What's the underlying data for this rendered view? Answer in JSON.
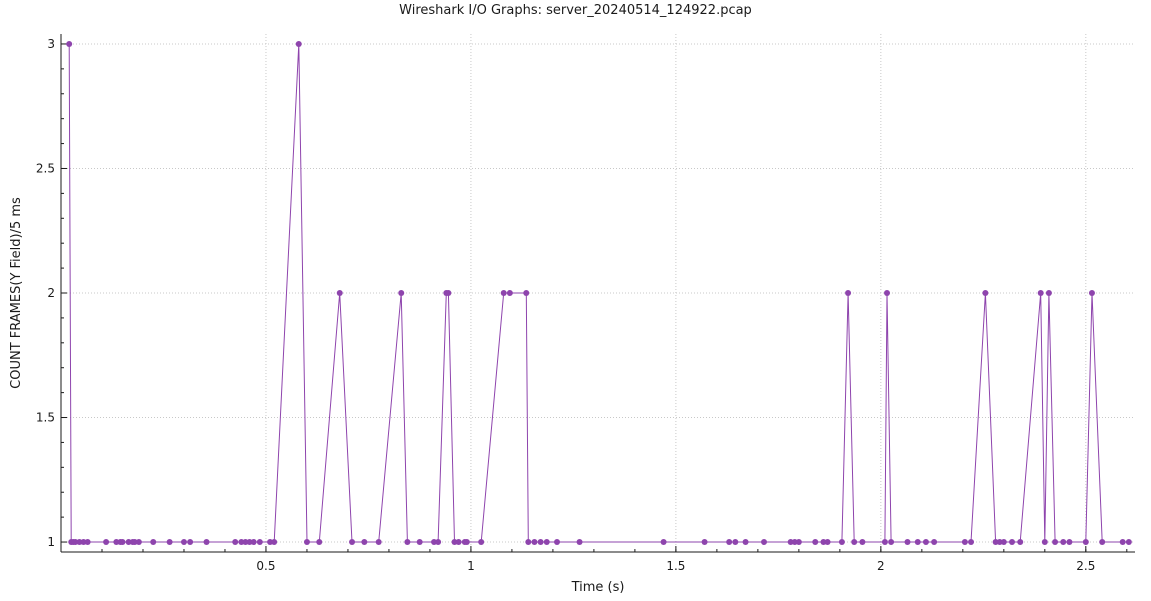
{
  "chart_data": {
    "type": "line",
    "title": "Wireshark I/O Graphs: server_20240514_124922.pcap",
    "xlabel": "Time (s)",
    "ylabel": "COUNT FRAMES(Y Field)/5 ms",
    "xlim": [
      0.0,
      2.62
    ],
    "ylim": [
      0.96,
      3.04
    ],
    "x_ticks": [
      0.5,
      1,
      1.5,
      2,
      2.5
    ],
    "x_tick_labels": [
      "0.5",
      "1",
      "1.5",
      "2",
      "2.5"
    ],
    "y_ticks": [
      1,
      1.5,
      2,
      2.5,
      3
    ],
    "y_tick_labels": [
      "1",
      "1.5",
      "2",
      "2.5",
      "3"
    ],
    "grid": true,
    "series": [
      {
        "color": "#8e44ad",
        "x": [
          0.02,
          0.025,
          0.03,
          0.035,
          0.045,
          0.055,
          0.065,
          0.11,
          0.135,
          0.145,
          0.15,
          0.165,
          0.175,
          0.18,
          0.19,
          0.225,
          0.265,
          0.3,
          0.315,
          0.355,
          0.425,
          0.44,
          0.45,
          0.46,
          0.47,
          0.485,
          0.51,
          0.52,
          0.58,
          0.6,
          0.63,
          0.68,
          0.71,
          0.74,
          0.775,
          0.83,
          0.845,
          0.875,
          0.91,
          0.92,
          0.94,
          0.945,
          0.96,
          0.97,
          0.985,
          0.99,
          1.025,
          1.08,
          1.095,
          1.135,
          1.14,
          1.155,
          1.17,
          1.185,
          1.21,
          1.265,
          1.47,
          1.57,
          1.63,
          1.645,
          1.67,
          1.715,
          1.78,
          1.79,
          1.8,
          1.84,
          1.86,
          1.87,
          1.905,
          1.92,
          1.935,
          1.955,
          2.01,
          2.015,
          2.025,
          2.065,
          2.09,
          2.11,
          2.13,
          2.205,
          2.22,
          2.255,
          2.28,
          2.29,
          2.3,
          2.32,
          2.34,
          2.39,
          2.4,
          2.41,
          2.425,
          2.445,
          2.46,
          2.5,
          2.515,
          2.54,
          2.59,
          2.605
        ],
        "y": [
          3,
          1,
          1,
          1,
          1,
          1,
          1,
          1,
          1,
          1,
          1,
          1,
          1,
          1,
          1,
          1,
          1,
          1,
          1,
          1,
          1,
          1,
          1,
          1,
          1,
          1,
          1,
          1,
          3,
          1,
          1,
          2,
          1,
          1,
          1,
          2,
          1,
          1,
          1,
          1,
          2,
          2,
          1,
          1,
          1,
          1,
          1,
          2,
          2,
          2,
          1,
          1,
          1,
          1,
          1,
          1,
          1,
          1,
          1,
          1,
          1,
          1,
          1,
          1,
          1,
          1,
          1,
          1,
          1,
          2,
          1,
          1,
          1,
          2,
          1,
          1,
          1,
          1,
          1,
          1,
          1,
          2,
          1,
          1,
          1,
          1,
          1,
          2,
          1,
          2,
          1,
          1,
          1,
          1,
          2,
          1,
          1,
          1
        ]
      }
    ]
  }
}
